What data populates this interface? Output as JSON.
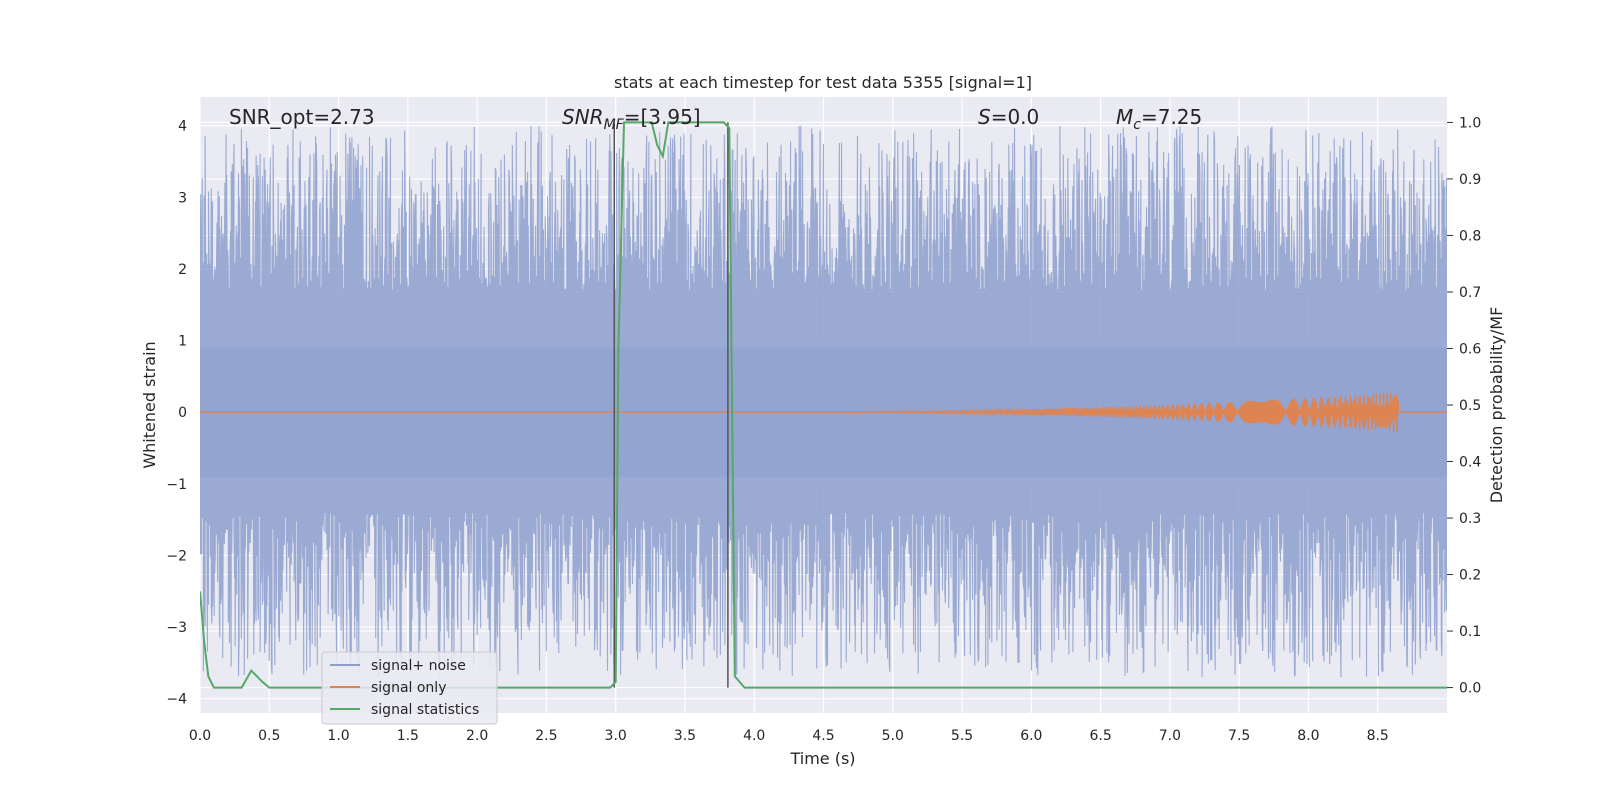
{
  "chart_data": {
    "type": "line",
    "title": "stats at each timestep for test data 5355 [signal=1]",
    "xlabel": "Time (s)",
    "ylabel_left": "Whitened strain",
    "ylabel_right": "Detection probability/MF",
    "xlim": [
      0,
      9.0
    ],
    "ylim_left": [
      -4.2,
      4.4
    ],
    "ylim_right": [
      -0.045,
      1.045
    ],
    "x_ticks": [
      "0.0",
      "0.5",
      "1.0",
      "1.5",
      "2.0",
      "2.5",
      "3.0",
      "3.5",
      "4.0",
      "4.5",
      "5.0",
      "5.5",
      "6.0",
      "6.5",
      "7.0",
      "7.5",
      "8.0",
      "8.5"
    ],
    "y_ticks_left": [
      "−4",
      "−3",
      "−2",
      "−1",
      "0",
      "1",
      "2",
      "3",
      "4"
    ],
    "y_ticks_right": [
      "0.0",
      "0.1",
      "0.2",
      "0.3",
      "0.4",
      "0.5",
      "0.6",
      "0.7",
      "0.8",
      "0.9",
      "1.0"
    ],
    "grid": true,
    "legend_position": "lower-left",
    "annotations": {
      "snr_opt": "SNR_opt=2.73",
      "snr_mf_label": "SNR",
      "snr_mf_sub": "MF",
      "snr_mf_value": "=[3.95]",
      "s_label": "S",
      "s_value": "=0.0",
      "mc_label": "M",
      "mc_sub": "c",
      "mc_value": "=7.25"
    },
    "detection_window": [
      2.99,
      3.81
    ],
    "series": [
      {
        "name": "signal+ noise",
        "color": "#8c9fcc",
        "axis": "left",
        "envelope": {
          "x_range": [
            0,
            9.0
          ],
          "typical_band": [
            -1.4,
            1.7
          ],
          "peak_max": 4.0,
          "peak_min": -3.7
        }
      },
      {
        "name": "signal only",
        "color": "#dd8452",
        "axis": "left",
        "chirp": {
          "start": 4.0,
          "end": 8.65,
          "peak_amplitude": 0.28
        }
      },
      {
        "name": "signal statistics",
        "color": "#55a868",
        "axis": "right",
        "x": [
          0.0,
          0.03,
          0.06,
          0.1,
          0.15,
          0.3,
          0.37,
          0.45,
          0.5,
          0.6,
          1.0,
          2.0,
          2.96,
          3.0,
          3.02,
          3.06,
          3.26,
          3.3,
          3.34,
          3.38,
          3.45,
          3.78,
          3.82,
          3.86,
          3.93,
          4.5,
          9.0
        ],
        "values": [
          0.17,
          0.08,
          0.02,
          0.0,
          0.0,
          0.0,
          0.03,
          0.01,
          0.0,
          0.0,
          0.0,
          0.0,
          0.0,
          0.01,
          0.6,
          1.0,
          1.0,
          0.96,
          0.94,
          1.0,
          1.0,
          1.0,
          0.99,
          0.02,
          0.0,
          0.0,
          0.0
        ]
      }
    ]
  }
}
